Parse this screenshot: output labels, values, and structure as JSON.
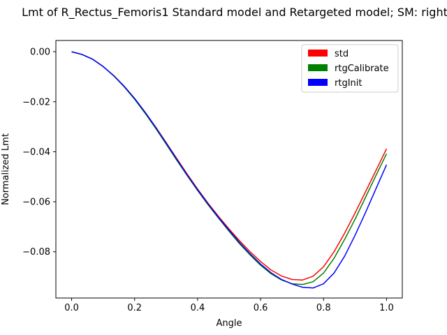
{
  "chart_data": {
    "type": "line",
    "title": "Lmt of R_Rectus_Femoris1 Standard model and Retargeted model; SM: right_",
    "xlabel": "Angle",
    "ylabel": "Normalized Lmt",
    "xlim": [
      -0.05,
      1.05
    ],
    "ylim": [
      -0.0985,
      0.0045
    ],
    "xticks": [
      0.0,
      0.2,
      0.4,
      0.6,
      0.8,
      1.0
    ],
    "xtick_labels": [
      "0.0",
      "0.2",
      "0.4",
      "0.6",
      "0.8",
      "1.0"
    ],
    "yticks": [
      0.0,
      -0.02,
      -0.04,
      -0.06,
      -0.08
    ],
    "ytick_labels": [
      "0.00",
      "−0.02",
      "−0.04",
      "−0.06",
      "−0.08"
    ],
    "grid": false,
    "legend_position": "top-right",
    "x": [
      0.0,
      0.0333,
      0.0667,
      0.1,
      0.1333,
      0.1667,
      0.2,
      0.2333,
      0.2667,
      0.3,
      0.3333,
      0.3667,
      0.4,
      0.4333,
      0.4667,
      0.5,
      0.5333,
      0.5667,
      0.6,
      0.6333,
      0.6667,
      0.7,
      0.7333,
      0.7667,
      0.8,
      0.8333,
      0.8667,
      0.9,
      0.9333,
      0.9667,
      1.0
    ],
    "series": [
      {
        "name": "std",
        "color": "#ff0000",
        "values": [
          0.0,
          -0.0011,
          -0.003,
          -0.0059,
          -0.0095,
          -0.0138,
          -0.0187,
          -0.0242,
          -0.0301,
          -0.0363,
          -0.0426,
          -0.0489,
          -0.0549,
          -0.0606,
          -0.0659,
          -0.0709,
          -0.0756,
          -0.08,
          -0.0839,
          -0.0873,
          -0.0897,
          -0.0911,
          -0.0913,
          -0.0898,
          -0.086,
          -0.08,
          -0.0726,
          -0.0645,
          -0.056,
          -0.0474,
          -0.0388
        ]
      },
      {
        "name": "rtgCalibrate",
        "color": "#008000",
        "values": [
          0.0,
          -0.0011,
          -0.003,
          -0.0059,
          -0.0096,
          -0.014,
          -0.019,
          -0.0246,
          -0.0306,
          -0.0369,
          -0.0433,
          -0.0495,
          -0.0555,
          -0.0612,
          -0.0666,
          -0.0718,
          -0.0768,
          -0.0813,
          -0.0854,
          -0.0888,
          -0.0913,
          -0.0928,
          -0.0931,
          -0.092,
          -0.0885,
          -0.0826,
          -0.0751,
          -0.067,
          -0.0582,
          -0.0494,
          -0.0408
        ]
      },
      {
        "name": "rtgInit",
        "color": "#0000ff",
        "values": [
          0.0,
          -0.0011,
          -0.003,
          -0.0059,
          -0.0095,
          -0.0138,
          -0.0187,
          -0.0242,
          -0.0302,
          -0.0365,
          -0.0429,
          -0.0492,
          -0.0552,
          -0.0609,
          -0.0663,
          -0.0714,
          -0.0763,
          -0.0808,
          -0.0849,
          -0.0884,
          -0.0911,
          -0.0929,
          -0.0942,
          -0.0945,
          -0.0928,
          -0.0885,
          -0.0818,
          -0.0734,
          -0.0643,
          -0.0547,
          -0.0452
        ]
      }
    ]
  }
}
